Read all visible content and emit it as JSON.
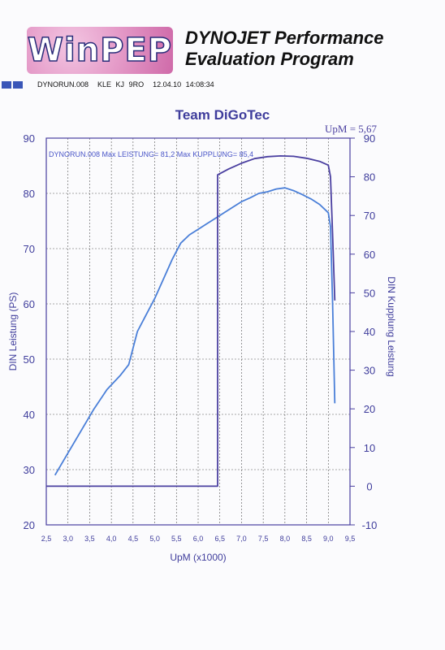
{
  "header": {
    "logo": "WinPEP",
    "title_line1": "DYNOJET Performance",
    "title_line2": "Evaluation Program",
    "run_file": "DYNORUN.008",
    "run_meta": "KLE KJ 9RO",
    "timestamp": "12.04.10 14:08:34"
  },
  "chart_data": {
    "type": "line",
    "title": "Team DiGoTec",
    "xlabel": "UpM (x1000)",
    "ylabel": "DIN Leistung (PS)",
    "y2label": "DIN Kupplung Leistung",
    "xlim": [
      2.5,
      9.5
    ],
    "ylim": [
      20,
      90
    ],
    "y2lim": [
      -10,
      90
    ],
    "x_ticks": [
      "2,5",
      "3,0",
      "3,5",
      "4,0",
      "4,5",
      "5,0",
      "5,5",
      "6,0",
      "6,5",
      "7,0",
      "7,5",
      "8,0",
      "8,5",
      "9,0",
      "9,5"
    ],
    "y_ticks": [
      "20",
      "30",
      "40",
      "50",
      "60",
      "70",
      "80",
      "90"
    ],
    "y2_ticks": [
      "-10",
      "0",
      "10",
      "20",
      "30",
      "40",
      "50",
      "60",
      "70",
      "80",
      "90"
    ],
    "cursor_label": "UpM = 5,67",
    "legend": {
      "run": "DYNORUN.008",
      "max_leistung": "Max LEISTUNG= 81,2",
      "max_kupplung": "Max KUPPLUNG= 85,4"
    },
    "series": [
      {
        "name": "Leistung",
        "axis": "left",
        "color": "#4a7fd8",
        "points": [
          [
            2.7,
            29
          ],
          [
            3.0,
            33
          ],
          [
            3.3,
            37
          ],
          [
            3.6,
            41
          ],
          [
            3.9,
            44.5
          ],
          [
            4.2,
            47
          ],
          [
            4.4,
            49
          ],
          [
            4.6,
            55
          ],
          [
            4.8,
            58
          ],
          [
            5.0,
            61
          ],
          [
            5.2,
            64.5
          ],
          [
            5.4,
            68
          ],
          [
            5.6,
            71
          ],
          [
            5.8,
            72.5
          ],
          [
            6.0,
            73.5
          ],
          [
            6.2,
            74.5
          ],
          [
            6.4,
            75.5
          ],
          [
            6.6,
            76.5
          ],
          [
            6.8,
            77.5
          ],
          [
            7.0,
            78.5
          ],
          [
            7.2,
            79.2
          ],
          [
            7.4,
            80.0
          ],
          [
            7.6,
            80.3
          ],
          [
            7.8,
            80.8
          ],
          [
            8.0,
            81.0
          ],
          [
            8.2,
            80.5
          ],
          [
            8.4,
            79.8
          ],
          [
            8.6,
            79.0
          ],
          [
            8.8,
            78.0
          ],
          [
            9.0,
            76.5
          ],
          [
            9.05,
            74
          ],
          [
            9.1,
            60
          ],
          [
            9.15,
            42
          ]
        ]
      },
      {
        "name": "Kupplung",
        "axis": "right",
        "color": "#4a3fa0",
        "points": [
          [
            2.5,
            0
          ],
          [
            6.45,
            0
          ],
          [
            6.45,
            80.5
          ],
          [
            6.7,
            82
          ],
          [
            7.0,
            83.5
          ],
          [
            7.3,
            84.7
          ],
          [
            7.6,
            85.2
          ],
          [
            7.9,
            85.4
          ],
          [
            8.2,
            85.3
          ],
          [
            8.5,
            84.8
          ],
          [
            8.8,
            84.0
          ],
          [
            9.0,
            83.0
          ],
          [
            9.05,
            80
          ],
          [
            9.1,
            65
          ],
          [
            9.15,
            48
          ]
        ]
      }
    ]
  }
}
